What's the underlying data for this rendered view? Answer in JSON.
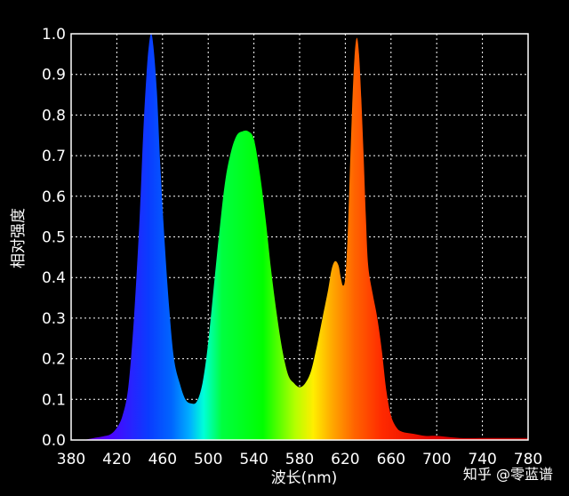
{
  "chart_data": {
    "type": "area",
    "xlabel": "波长(nm)",
    "ylabel": "相对强度",
    "xlim": [
      380,
      780
    ],
    "ylim": [
      0,
      1.0
    ],
    "x_ticks": [
      "380",
      "420",
      "460",
      "500",
      "540",
      "580",
      "620",
      "660",
      "700",
      "740",
      "780"
    ],
    "y_ticks": [
      "0.0",
      "0.1",
      "0.2",
      "0.3",
      "0.4",
      "0.5",
      "0.6",
      "0.7",
      "0.8",
      "0.9",
      "1.0"
    ],
    "grid": true,
    "fill": "spectral gradient by wavelength",
    "x": [
      380,
      390,
      400,
      410,
      415,
      420,
      425,
      430,
      435,
      440,
      443,
      446,
      448,
      450,
      452,
      455,
      458,
      462,
      466,
      470,
      475,
      480,
      485,
      490,
      495,
      500,
      505,
      510,
      515,
      520,
      525,
      530,
      535,
      540,
      545,
      550,
      555,
      560,
      565,
      570,
      575,
      580,
      585,
      590,
      595,
      600,
      605,
      608,
      611,
      614,
      616,
      618,
      620,
      622,
      624,
      626,
      628,
      630,
      632,
      634,
      636,
      638,
      640,
      644,
      648,
      652,
      656,
      660,
      665,
      670,
      680,
      690,
      700,
      720,
      740,
      760,
      780
    ],
    "values": [
      0.0,
      0.0,
      0.005,
      0.01,
      0.015,
      0.03,
      0.06,
      0.13,
      0.3,
      0.55,
      0.75,
      0.9,
      0.97,
      1.0,
      0.97,
      0.86,
      0.68,
      0.48,
      0.32,
      0.2,
      0.14,
      0.1,
      0.09,
      0.095,
      0.14,
      0.24,
      0.38,
      0.52,
      0.64,
      0.71,
      0.75,
      0.76,
      0.76,
      0.74,
      0.66,
      0.55,
      0.42,
      0.31,
      0.22,
      0.16,
      0.14,
      0.13,
      0.14,
      0.17,
      0.23,
      0.3,
      0.37,
      0.42,
      0.44,
      0.43,
      0.4,
      0.38,
      0.4,
      0.5,
      0.66,
      0.82,
      0.94,
      0.99,
      0.95,
      0.84,
      0.7,
      0.55,
      0.43,
      0.36,
      0.3,
      0.22,
      0.12,
      0.06,
      0.03,
      0.02,
      0.015,
      0.01,
      0.01,
      0.005,
      0.005,
      0.005,
      0.005
    ]
  },
  "watermark": "知乎 @零蓝谱"
}
